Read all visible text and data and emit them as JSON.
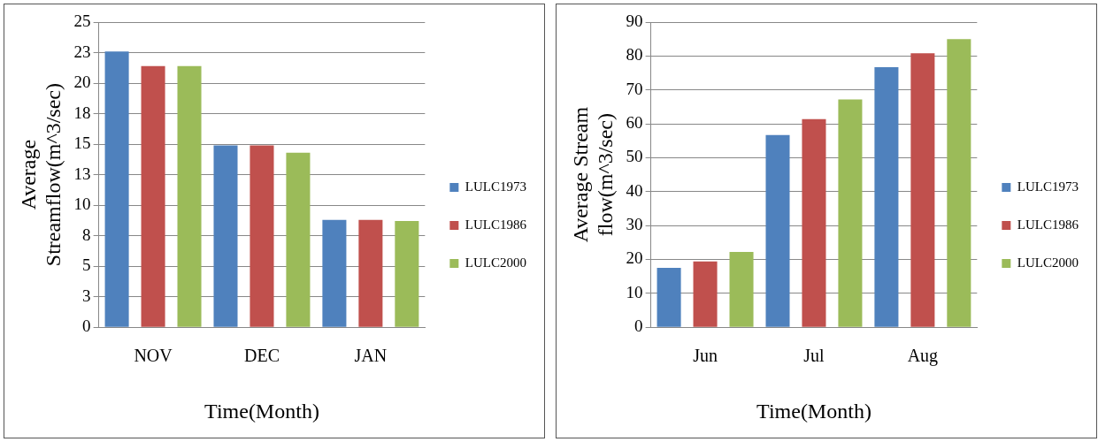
{
  "chart_data": [
    {
      "type": "bar",
      "xlabel": "Time(Month)",
      "ylabel": "Average Streamflow(m^3/sec)",
      "categories": [
        "NOV",
        "DEC",
        "JAN"
      ],
      "series": [
        {
          "name": "LULC1973",
          "color": "#4f81bd",
          "values": [
            22.6,
            14.9,
            8.8
          ]
        },
        {
          "name": "LULC1986",
          "color": "#c0504d",
          "values": [
            21.4,
            14.9,
            8.8
          ]
        },
        {
          "name": "LULC2000",
          "color": "#9bbb59",
          "values": [
            21.4,
            14.3,
            8.7
          ]
        }
      ],
      "ylim": [
        0,
        25
      ],
      "yticks": [
        0,
        {
          "value": 2.5,
          "label": "3"
        },
        5,
        {
          "value": 7.5,
          "label": "8"
        },
        10,
        {
          "value": 12.5,
          "label": "13"
        },
        15,
        {
          "value": 17.5,
          "label": "18"
        },
        20,
        {
          "value": 22.5,
          "label": "23"
        },
        25
      ],
      "grid": "y",
      "legend": "right"
    },
    {
      "type": "bar",
      "xlabel": "Time(Month)",
      "ylabel": "Average Stream flow(m^3/sec)",
      "categories": [
        "Jun",
        "Jul",
        "Aug"
      ],
      "series": [
        {
          "name": "LULC1973",
          "color": "#4f81bd",
          "values": [
            17.5,
            56.7,
            76.7
          ]
        },
        {
          "name": "LULC1986",
          "color": "#c0504d",
          "values": [
            19.4,
            61.4,
            80.8
          ]
        },
        {
          "name": "LULC2000",
          "color": "#9bbb59",
          "values": [
            22.2,
            67.2,
            85
          ]
        }
      ],
      "ylim": [
        0,
        90
      ],
      "yticks": [
        0,
        10,
        20,
        30,
        40,
        50,
        60,
        70,
        80,
        90
      ],
      "grid": "y",
      "legend": "right"
    }
  ]
}
